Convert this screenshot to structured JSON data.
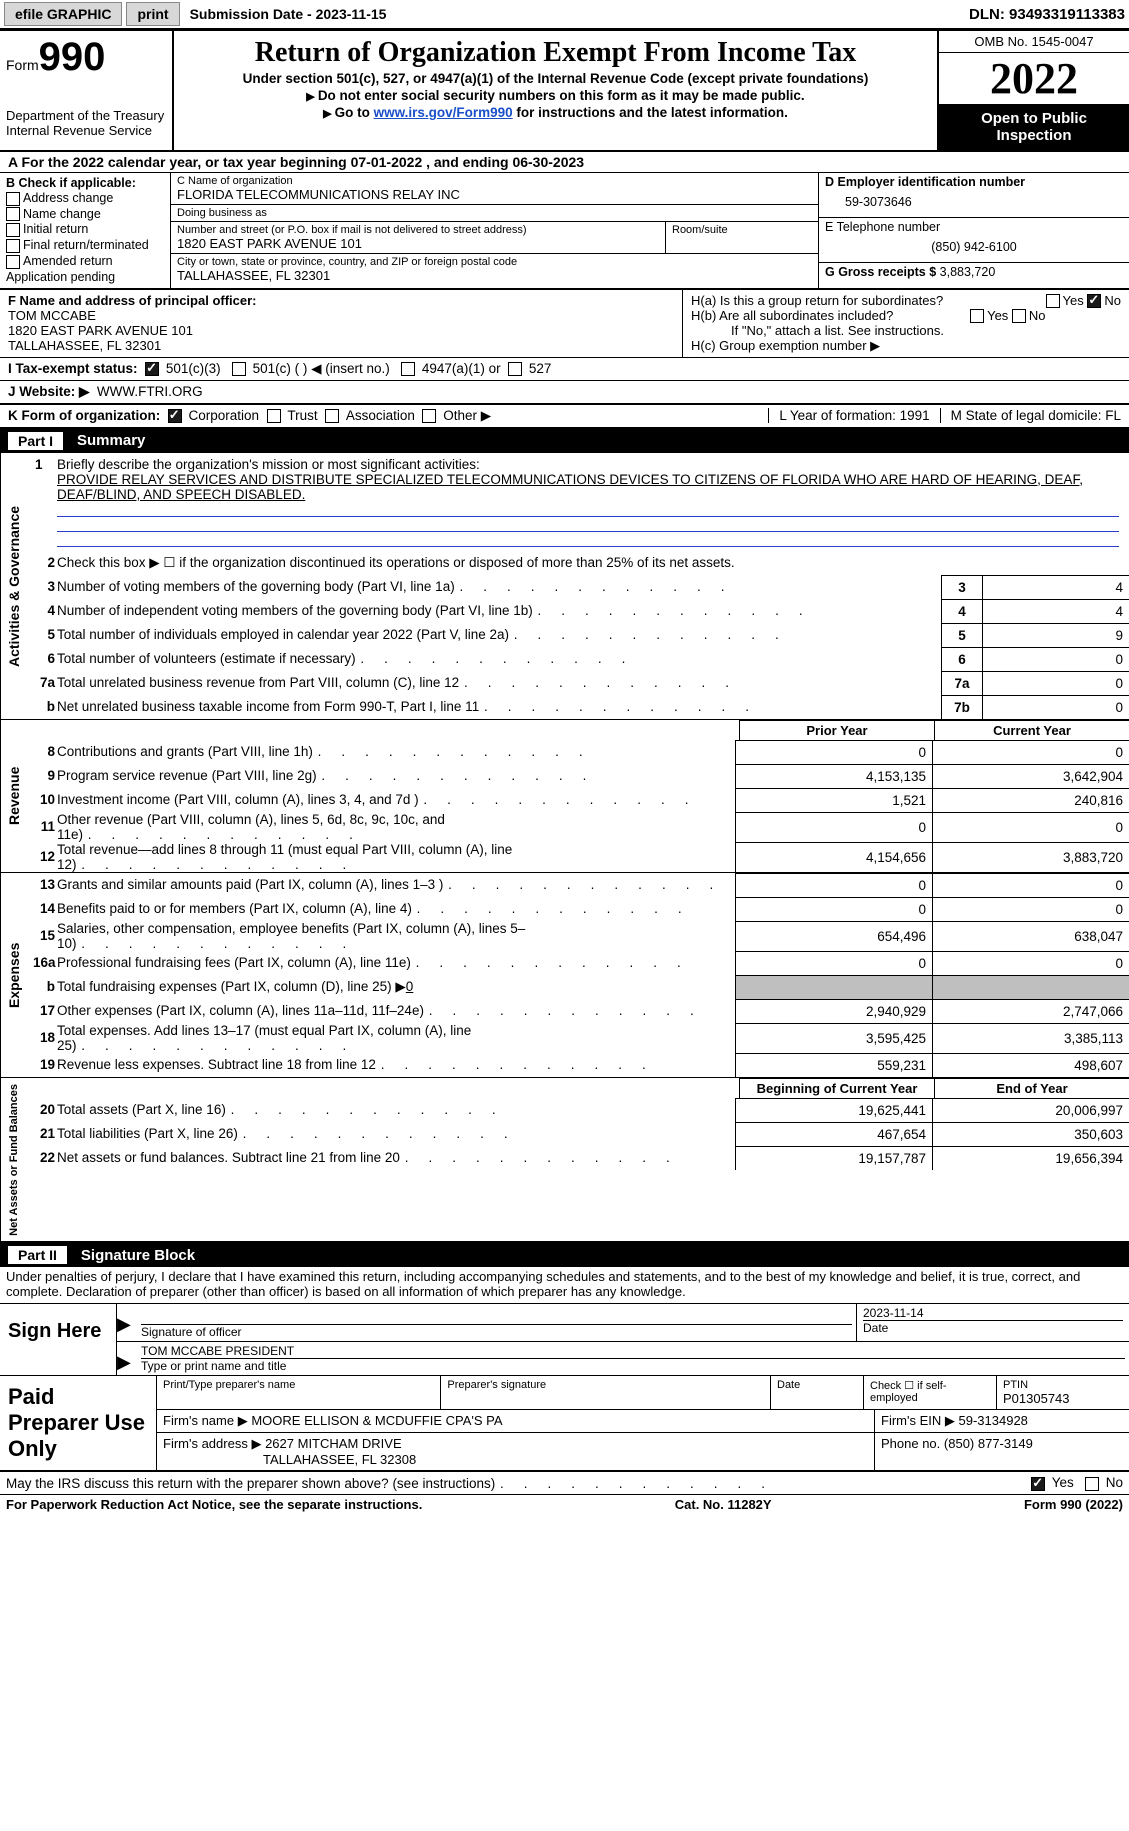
{
  "topbar": {
    "efile": "efile GRAPHIC",
    "print": "print",
    "submission_label": "Submission Date - 2023-11-15",
    "dln": "DLN: 93493319113383"
  },
  "header": {
    "form_prefix": "Form",
    "form_no": "990",
    "dept": "Department of the Treasury",
    "irs": "Internal Revenue Service",
    "title": "Return of Organization Exempt From Income Tax",
    "subtitle": "Under section 501(c), 527, or 4947(a)(1) of the Internal Revenue Code (except private foundations)",
    "line1": "Do not enter social security numbers on this form as it may be made public.",
    "line2_pre": "Go to ",
    "line2_link": "www.irs.gov/Form990",
    "line2_post": " for instructions and the latest information.",
    "omb": "OMB No. 1545-0047",
    "year": "2022",
    "open": "Open to Public Inspection"
  },
  "rowA": "A For the 2022 calendar year, or tax year beginning 07-01-2022    , and ending 06-30-2023",
  "colB": {
    "title": "B Check if applicable:",
    "items": [
      "Address change",
      "Name change",
      "Initial return",
      "Final return/terminated",
      "Amended return",
      "Application pending"
    ]
  },
  "colC": {
    "name_lbl": "C Name of organization",
    "name": "FLORIDA TELECOMMUNICATIONS RELAY INC",
    "dba_lbl": "Doing business as",
    "dba": "",
    "addr_lbl": "Number and street (or P.O. box if mail is not delivered to street address)",
    "addr": "1820 EAST PARK AVENUE 101",
    "room_lbl": "Room/suite",
    "city_lbl": "City or town, state or province, country, and ZIP or foreign postal code",
    "city": "TALLAHASSEE, FL  32301"
  },
  "colD": {
    "ein_lbl": "D Employer identification number",
    "ein": "59-3073646",
    "tel_lbl": "E Telephone number",
    "tel": "(850) 942-6100",
    "gross_lbl": "G Gross receipts $",
    "gross": "3,883,720"
  },
  "F": {
    "lbl": "F Name and address of principal officer:",
    "name": "TOM MCCABE",
    "addr1": "1820 EAST PARK AVENUE 101",
    "addr2": "TALLAHASSEE, FL  32301"
  },
  "H": {
    "a": "H(a)  Is this a group return for subordinates?",
    "b": "H(b)  Are all subordinates included?",
    "note": "If \"No,\" attach a list. See instructions.",
    "c": "H(c)  Group exemption number ▶"
  },
  "I": {
    "lbl": "I    Tax-exempt status:",
    "o1": "501(c)(3)",
    "o2": "501(c) (  ) ◀ (insert no.)",
    "o3": "4947(a)(1) or",
    "o4": "527"
  },
  "J": {
    "lbl": "J    Website: ▶",
    "val": "WWW.FTRI.ORG"
  },
  "K": {
    "lbl": "K Form of organization:",
    "opts": [
      "Corporation",
      "Trust",
      "Association",
      "Other ▶"
    ],
    "L": "L Year of formation: 1991",
    "M": "M State of legal domicile: FL"
  },
  "part1": {
    "no": "Part I",
    "title": "Summary"
  },
  "mission": {
    "lbl": "Briefly describe the organization's mission or most significant activities:",
    "text": "PROVIDE RELAY SERVICES AND DISTRIBUTE SPECIALIZED TELECOMMUNICATIONS DEVICES TO CITIZENS OF FLORIDA WHO ARE HARD OF HEARING, DEAF, DEAF/BLIND, AND SPEECH DISABLED."
  },
  "lines_gov": [
    {
      "n": "2",
      "lbl": "Check this box ▶ ☐ if the organization discontinued its operations or disposed of more than 25% of its net assets."
    },
    {
      "n": "3",
      "lbl": "Number of voting members of the governing body (Part VI, line 1a)",
      "box": "3",
      "val": "4"
    },
    {
      "n": "4",
      "lbl": "Number of independent voting members of the governing body (Part VI, line 1b)",
      "box": "4",
      "val": "4"
    },
    {
      "n": "5",
      "lbl": "Total number of individuals employed in calendar year 2022 (Part V, line 2a)",
      "box": "5",
      "val": "9"
    },
    {
      "n": "6",
      "lbl": "Total number of volunteers (estimate if necessary)",
      "box": "6",
      "val": "0"
    },
    {
      "n": "7a",
      "lbl": "Total unrelated business revenue from Part VIII, column (C), line 12",
      "box": "7a",
      "val": "0"
    },
    {
      "n": "b",
      "lbl": "Net unrelated business taxable income from Form 990-T, Part I, line 11",
      "box": "7b",
      "val": "0"
    }
  ],
  "rev_hdr": {
    "prior": "Prior Year",
    "curr": "Current Year"
  },
  "lines_rev": [
    {
      "n": "8",
      "lbl": "Contributions and grants (Part VIII, line 1h)",
      "p": "0",
      "c": "0"
    },
    {
      "n": "9",
      "lbl": "Program service revenue (Part VIII, line 2g)",
      "p": "4,153,135",
      "c": "3,642,904"
    },
    {
      "n": "10",
      "lbl": "Investment income (Part VIII, column (A), lines 3, 4, and 7d )",
      "p": "1,521",
      "c": "240,816"
    },
    {
      "n": "11",
      "lbl": "Other revenue (Part VIII, column (A), lines 5, 6d, 8c, 9c, 10c, and 11e)",
      "p": "0",
      "c": "0"
    },
    {
      "n": "12",
      "lbl": "Total revenue—add lines 8 through 11 (must equal Part VIII, column (A), line 12)",
      "p": "4,154,656",
      "c": "3,883,720"
    }
  ],
  "lines_exp": [
    {
      "n": "13",
      "lbl": "Grants and similar amounts paid (Part IX, column (A), lines 1–3 )",
      "p": "0",
      "c": "0"
    },
    {
      "n": "14",
      "lbl": "Benefits paid to or for members (Part IX, column (A), line 4)",
      "p": "0",
      "c": "0"
    },
    {
      "n": "15",
      "lbl": "Salaries, other compensation, employee benefits (Part IX, column (A), lines 5–10)",
      "p": "654,496",
      "c": "638,047"
    },
    {
      "n": "16a",
      "lbl": "Professional fundraising fees (Part IX, column (A), line 11e)",
      "p": "0",
      "c": "0"
    },
    {
      "n": "b",
      "lbl": "Total fundraising expenses (Part IX, column (D), line 25) ▶",
      "p": "shade",
      "c": "shade",
      "u": "0"
    },
    {
      "n": "17",
      "lbl": "Other expenses (Part IX, column (A), lines 11a–11d, 11f–24e)",
      "p": "2,940,929",
      "c": "2,747,066"
    },
    {
      "n": "18",
      "lbl": "Total expenses. Add lines 13–17 (must equal Part IX, column (A), line 25)",
      "p": "3,595,425",
      "c": "3,385,113"
    },
    {
      "n": "19",
      "lbl": "Revenue less expenses. Subtract line 18 from line 12",
      "p": "559,231",
      "c": "498,607"
    }
  ],
  "net_hdr": {
    "b": "Beginning of Current Year",
    "e": "End of Year"
  },
  "lines_net": [
    {
      "n": "20",
      "lbl": "Total assets (Part X, line 16)",
      "p": "19,625,441",
      "c": "20,006,997"
    },
    {
      "n": "21",
      "lbl": "Total liabilities (Part X, line 26)",
      "p": "467,654",
      "c": "350,603"
    },
    {
      "n": "22",
      "lbl": "Net assets or fund balances. Subtract line 21 from line 20",
      "p": "19,157,787",
      "c": "19,656,394"
    }
  ],
  "part2": {
    "no": "Part II",
    "title": "Signature Block"
  },
  "penalties": "Under penalties of perjury, I declare that I have examined this return, including accompanying schedules and statements, and to the best of my knowledge and belief, it is true, correct, and complete. Declaration of preparer (other than officer) is based on all information of which preparer has any knowledge.",
  "sign": {
    "here": "Sign Here",
    "sig_lbl": "Signature of officer",
    "date": "2023-11-14",
    "date_lbl": "Date",
    "name": "TOM MCCABE PRESIDENT",
    "name_lbl": "Type or print name and title"
  },
  "paid": {
    "title": "Paid Preparer Use Only",
    "prep_name_lbl": "Print/Type preparer's name",
    "prep_sig_lbl": "Preparer's signature",
    "date_lbl": "Date",
    "self_lbl": "Check ☐ if self-employed",
    "ptin_lbl": "PTIN",
    "ptin": "P01305743",
    "firm_name_lbl": "Firm's name    ▶",
    "firm_name": "MOORE ELLISON & MCDUFFIE CPA'S PA",
    "firm_ein_lbl": "Firm's EIN ▶",
    "firm_ein": "59-3134928",
    "firm_addr_lbl": "Firm's address ▶",
    "firm_addr1": "2627 MITCHAM DRIVE",
    "firm_addr2": "TALLAHASSEE, FL  32308",
    "phone_lbl": "Phone no.",
    "phone": "(850) 877-3149"
  },
  "discuss": "May the IRS discuss this return with the preparer shown above? (see instructions)",
  "footer": {
    "pra": "For Paperwork Reduction Act Notice, see the separate instructions.",
    "cat": "Cat. No. 11282Y",
    "form": "Form 990 (2022)"
  },
  "vtabs": {
    "gov": "Activities & Governance",
    "rev": "Revenue",
    "exp": "Expenses",
    "net": "Net Assets or Fund Balances"
  }
}
